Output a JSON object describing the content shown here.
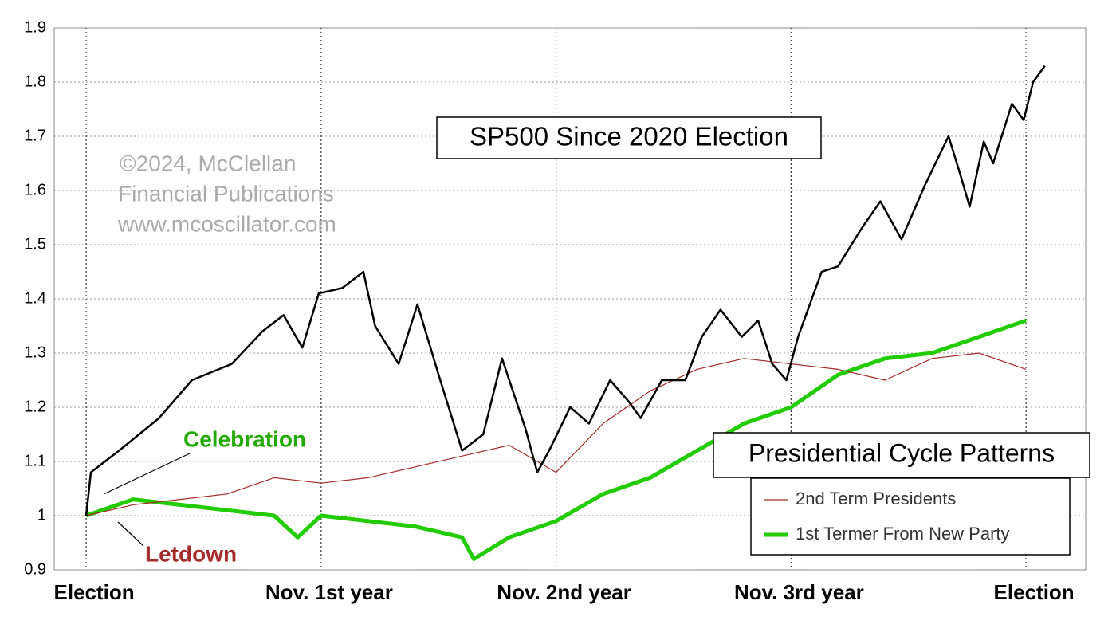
{
  "chart_data": {
    "type": "line",
    "title": "SP500 Since 2020 Election",
    "annotations": [
      "©2024, McClellan",
      "Financial Publications",
      "www.mcoscillator.com",
      "Celebration",
      "Letdown"
    ],
    "legend_title": "Presidential Cycle Patterns",
    "xlim": [
      -0.136,
      4.254
    ],
    "xticks": [
      {
        "value": 0,
        "label": "Election"
      },
      {
        "value": 1,
        "label": "Nov. 1st year"
      },
      {
        "value": 2,
        "label": "Nov. 2nd year"
      },
      {
        "value": 3,
        "label": "Nov. 3rd year"
      },
      {
        "value": 4,
        "label": "Election"
      }
    ],
    "ylim": [
      0.9,
      1.9
    ],
    "yticks": [
      0.9,
      1,
      1.1,
      1.2,
      1.3,
      1.4,
      1.5,
      1.6,
      1.7,
      1.8,
      1.9
    ],
    "grid": true,
    "legend": "lower right",
    "series": [
      {
        "name": "SP500",
        "color": "#000000",
        "width": 2.5,
        "legend": false,
        "x": [
          0,
          0.02,
          0.14,
          0.31,
          0.45,
          0.62,
          0.75,
          0.84,
          0.92,
          0.99,
          1.09,
          1.18,
          1.23,
          1.33,
          1.41,
          1.5,
          1.6,
          1.69,
          1.77,
          1.87,
          1.92,
          1.97,
          2.06,
          2.14,
          2.23,
          2.31,
          2.36,
          2.45,
          2.55,
          2.62,
          2.7,
          2.79,
          2.86,
          2.92,
          2.98,
          3.03,
          3.13,
          3.2,
          3.3,
          3.38,
          3.47,
          3.57,
          3.67,
          3.72,
          3.76,
          3.82,
          3.86,
          3.94,
          3.99,
          4.03,
          4.08
        ],
        "values": [
          1.0,
          1.08,
          1.12,
          1.18,
          1.25,
          1.28,
          1.34,
          1.37,
          1.31,
          1.41,
          1.42,
          1.45,
          1.35,
          1.28,
          1.39,
          1.26,
          1.12,
          1.15,
          1.29,
          1.16,
          1.08,
          1.12,
          1.2,
          1.17,
          1.25,
          1.21,
          1.18,
          1.25,
          1.25,
          1.33,
          1.38,
          1.33,
          1.36,
          1.28,
          1.25,
          1.33,
          1.45,
          1.46,
          1.53,
          1.58,
          1.51,
          1.61,
          1.7,
          1.63,
          1.57,
          1.69,
          1.65,
          1.76,
          1.73,
          1.8,
          1.83
        ]
      },
      {
        "name": "2nd Term Presidents",
        "color": "#a52a2a",
        "width": 1.2,
        "x": [
          0,
          0.2,
          0.4,
          0.6,
          0.8,
          1.0,
          1.2,
          1.4,
          1.6,
          1.8,
          2.0,
          2.2,
          2.4,
          2.6,
          2.8,
          3.0,
          3.2,
          3.4,
          3.6,
          3.8,
          4.0
        ],
        "values": [
          1.0,
          1.02,
          1.03,
          1.04,
          1.07,
          1.06,
          1.07,
          1.09,
          1.11,
          1.13,
          1.08,
          1.17,
          1.23,
          1.27,
          1.29,
          1.28,
          1.27,
          1.25,
          1.29,
          1.3,
          1.27
        ]
      },
      {
        "name": "1st Termer From New Party",
        "color": "#22cc00",
        "width": 5,
        "x": [
          0,
          0.2,
          0.4,
          0.6,
          0.8,
          0.9,
          1.0,
          1.2,
          1.4,
          1.6,
          1.65,
          1.8,
          2.0,
          2.2,
          2.4,
          2.6,
          2.8,
          3.0,
          3.2,
          3.4,
          3.6,
          3.8,
          4.0
        ],
        "values": [
          1.0,
          1.03,
          1.02,
          1.01,
          1.0,
          0.96,
          1.0,
          0.99,
          0.98,
          0.96,
          0.92,
          0.96,
          0.99,
          1.04,
          1.07,
          1.12,
          1.17,
          1.2,
          1.26,
          1.29,
          1.3,
          1.33,
          1.36
        ]
      }
    ]
  }
}
